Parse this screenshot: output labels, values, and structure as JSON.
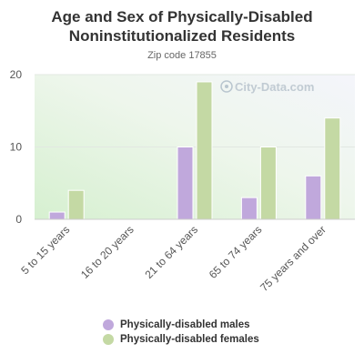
{
  "chart_data": {
    "type": "bar",
    "title": "Age and Sex of Physically-Disabled Noninstitutionalized Residents",
    "subtitle": "Zip code 17855",
    "categories": [
      "5 to 15 years",
      "16 to 20 years",
      "21 to 64 years",
      "65 to 74 years",
      "75 years and over"
    ],
    "series": [
      {
        "name": "Physically-disabled males",
        "color": "#c0a8dc",
        "values": [
          1,
          0,
          10,
          3,
          6
        ]
      },
      {
        "name": "Physically-disabled females",
        "color": "#c4d9a4",
        "values": [
          4,
          0,
          19,
          10,
          14
        ]
      }
    ],
    "ylim": [
      0,
      20
    ],
    "yticks": [
      0,
      10,
      20
    ],
    "xlabel": "",
    "ylabel": "",
    "grid": true,
    "legend_position": "bottom",
    "watermark": "City-Data.com"
  }
}
